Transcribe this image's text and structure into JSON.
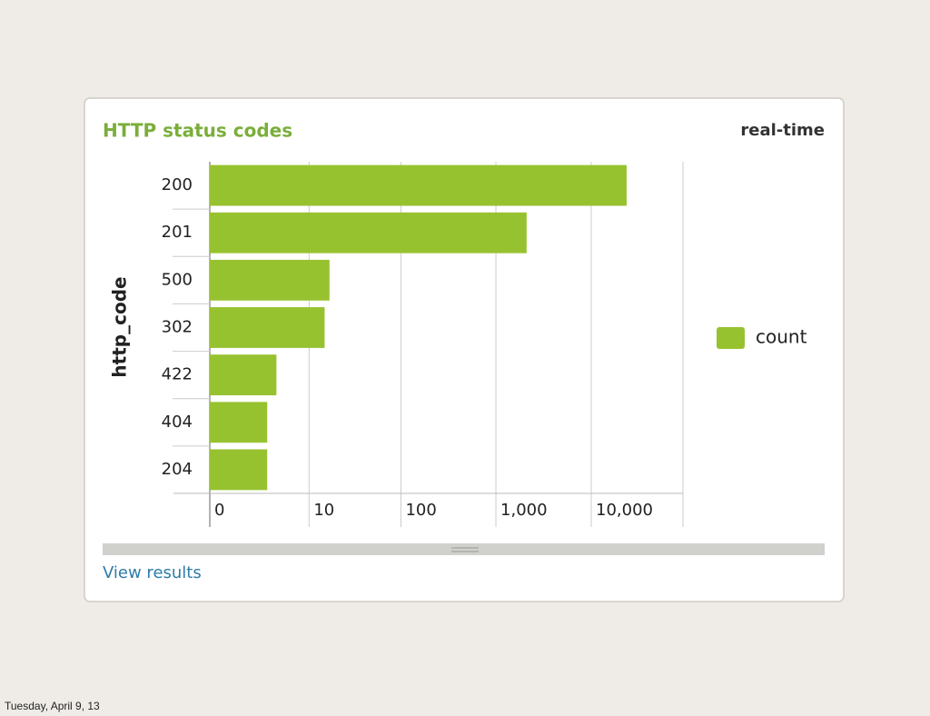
{
  "chart_data": {
    "type": "bar",
    "orientation": "horizontal",
    "title": "HTTP status codes",
    "subtitle": "real-time",
    "y_label": "http_code",
    "categories": [
      "200",
      "201",
      "500",
      "302",
      "422",
      "404",
      "204"
    ],
    "series": [
      {
        "name": "count",
        "color": "#97c230",
        "values": [
          23500,
          2100,
          17,
          15,
          4,
          3,
          3
        ]
      }
    ],
    "xscale": "log1p",
    "xlim": [
      0,
      100000
    ],
    "xticks": [
      0,
      10,
      100,
      {
        "value": 1000,
        "label": "1,000"
      },
      {
        "value": 10000,
        "label": "10,000"
      }
    ],
    "grid": true,
    "legend": "right"
  },
  "page": {
    "link": "View results",
    "footer": "Tuesday, April 9, 13"
  }
}
